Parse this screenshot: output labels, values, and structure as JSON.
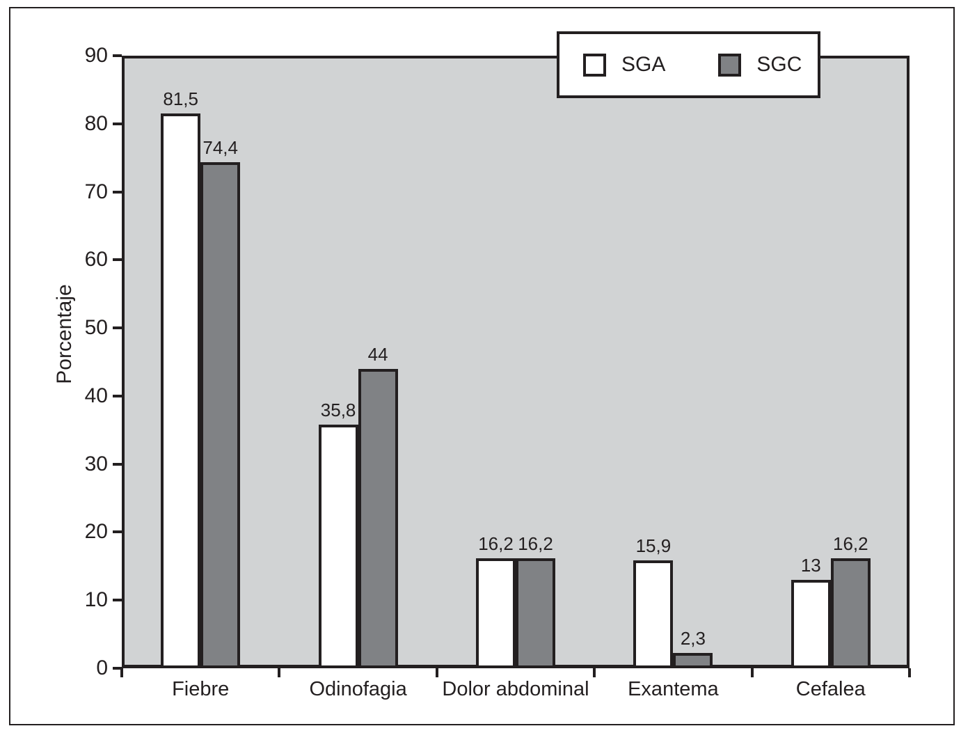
{
  "chart_data": {
    "type": "bar",
    "categories": [
      "Fiebre",
      "Odinofagia",
      "Dolor abdominal",
      "Exantema",
      "Cefalea"
    ],
    "series": [
      {
        "name": "SGA",
        "color": "#ffffff",
        "values": [
          81.5,
          35.8,
          16.2,
          15.9,
          13
        ],
        "value_labels": [
          "81,5",
          "35,8",
          "16,2",
          "15,9",
          "13"
        ]
      },
      {
        "name": "SGC",
        "color": "#808285",
        "values": [
          74.4,
          44,
          16.2,
          2.3,
          16.2
        ],
        "value_labels": [
          "74,4",
          "44",
          "16,2",
          "2,3",
          "16,2"
        ]
      }
    ],
    "title": "",
    "xlabel": "",
    "ylabel": "Porcentaje",
    "ylim": [
      0,
      90
    ],
    "ytick_step": 10,
    "ytick_labels": [
      "0",
      "10",
      "20",
      "30",
      "40",
      "50",
      "60",
      "70",
      "80",
      "90"
    ],
    "grid": false,
    "legend": {
      "position": "top-right",
      "entries": [
        "SGA",
        "SGC"
      ]
    },
    "colors": {
      "plot_background": "#d1d3d4",
      "axis_line": "#231f20",
      "sga_fill": "#ffffff",
      "sgc_fill": "#808285",
      "text": "#231f20"
    }
  }
}
